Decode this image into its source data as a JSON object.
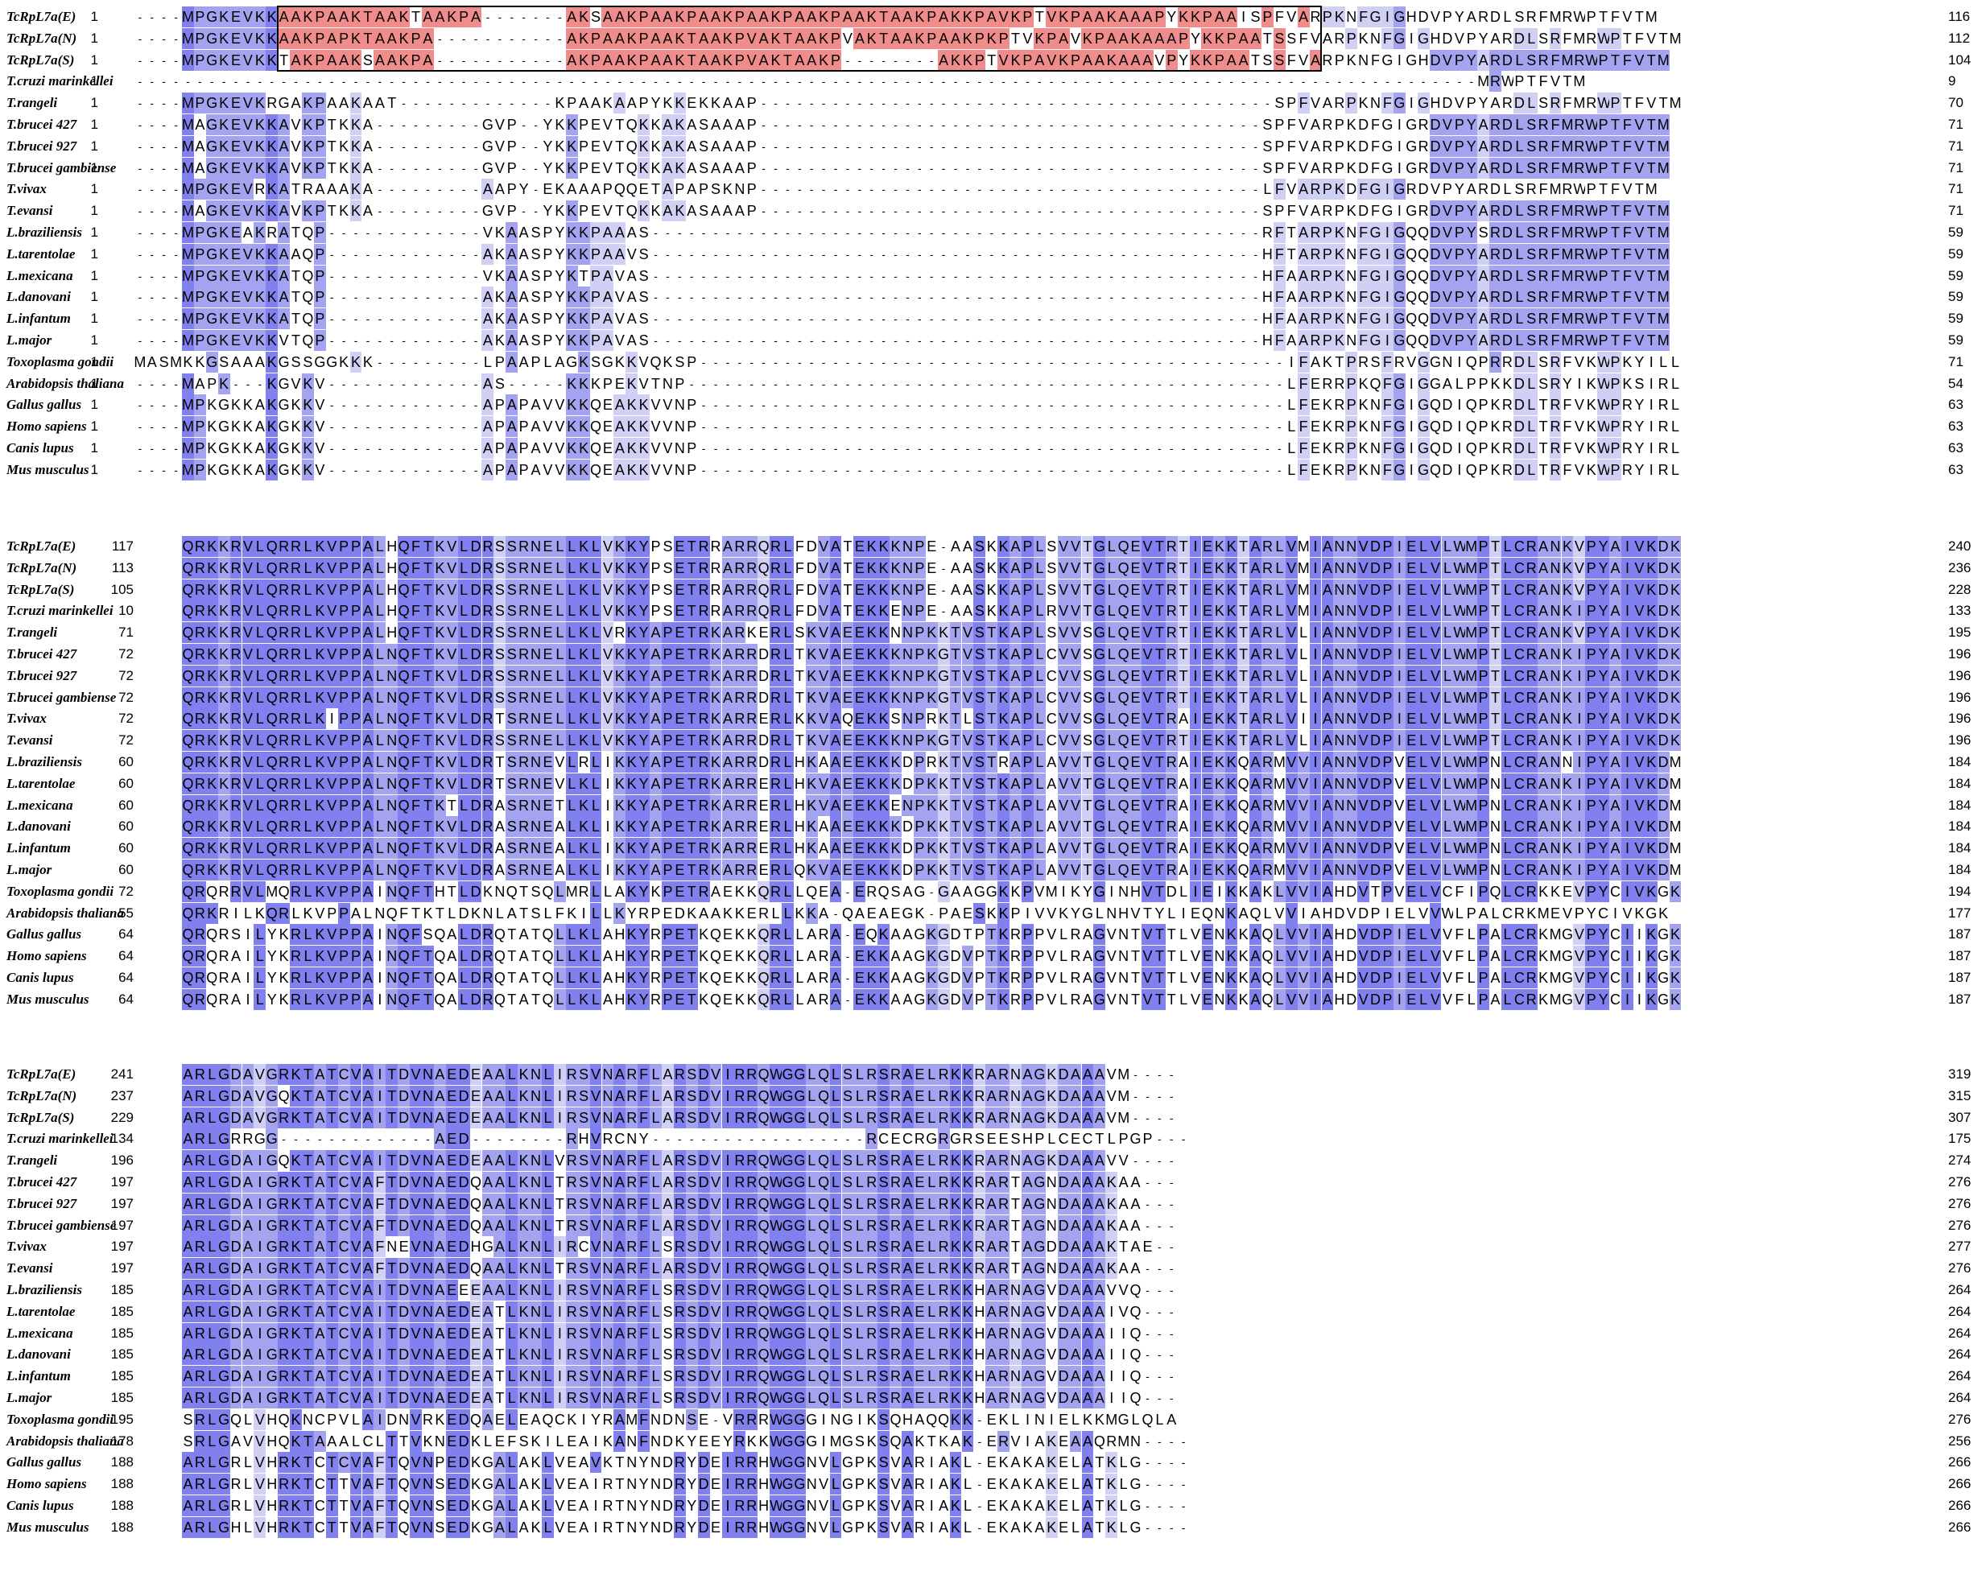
{
  "colors": {
    "strong": "#8080ee",
    "medium": "#a3a3ef",
    "light": "#d0d0f4",
    "extension": "#f08c8c",
    "none": "#ffffff"
  },
  "alignment": {
    "blocks": [
      {
        "rows": [
          {
            "species": "TcRpL7a(E)",
            "start": "1",
            "end": "116",
            "seq": "----MPGKEVKKAAKPAAKTAAKTAAKPA-------AKSAAKPAAKPAAKPAAKPAAKPAAKTAAKPAKKPAVKPTVKPAAKAAAPYKKPAAISPFVARPKNFGIGHDVPYARDLSRFMRWPTFVTM"
          },
          {
            "species": "TcRpL7a(N)",
            "start": "1",
            "end": "112",
            "seq": "----MPGKEVKKAAKPAPKTAAKPA-----------AKPAAKPAAKTAAKPVAKTAAKPVAKTAAKPAAKPKPTVKPAVKPAAKAAAPYKKPAATSSFVARPKNFGIGHDVPYARDLSRFMRWPTFVTM"
          },
          {
            "species": "TcRpL7a(S)",
            "start": "1",
            "end": "104",
            "seq": "----MPGKEVKKTAKPAAKSAAKPA-----------AKPAAKPAAKTAAKPVAKTAAKP--------AKKPTVKPAVKPAAKAAAVPYKKPAATSSFVARPKNFGIGHDVPYARDLSRFMRWPTFVTM"
          },
          {
            "species": "T.cruzi marinkellei",
            "start": "1",
            "end": "9",
            "seq": "----------------------------------------------------------------------------------------------------------------MRWPTFVTM"
          },
          {
            "species": "T.rangeli",
            "start": "1",
            "end": "70",
            "seq": "----MPGKEVKRGAKPAAKAAT-------------KPAAKAAPYKKEKKAAP-------------------------------------------SPFVARPKNFGIGHDVPYARDLSRFMRWPTFVTM"
          },
          {
            "species": "T.brucei 427",
            "start": "1",
            "end": "71",
            "seq": "----MAGKEVKKAVKPTKKA---------GVP--YKKPEVTQKKAKASAAAP------------------------------------------SPFVARPKDFGIGRDVPYARDLSRFMRWPTFVTM"
          },
          {
            "species": "T.brucei 927",
            "start": "1",
            "end": "71",
            "seq": "----MAGKEVKKAVKPTKKA---------GVP--YKKPEVTQKKAKASAAAP------------------------------------------SPFVARPKDFGIGRDVPYARDLSRFMRWPTFVTM"
          },
          {
            "species": "T.brucei gambiense",
            "start": "1",
            "end": "71",
            "seq": "----MAGKEVKKAVKPTKKA---------GVP--YKKPEVTQKKAKASAAAP------------------------------------------SPFVARPKDFGIGRDVPYARDLSRFMRWPTFVTM"
          },
          {
            "species": "T.vivax",
            "start": "1",
            "end": "71",
            "seq": "----MPGKEVRKATRAAAKA---------AAPY-EKAAAPQQETAPAPSKNP------------------------------------------LFVARPKDFGIGRDVPYARDLSRFMRWPTFVTM"
          },
          {
            "species": "T.evansi",
            "start": "1",
            "end": "71",
            "seq": "----MAGKEVKKAVKPTKKA---------GVP--YKKPEVTQKKAKASAAAP------------------------------------------SPFVARPKDFGIGRDVPYARDLSRFMRWPTFVTM"
          },
          {
            "species": "L.braziliensis",
            "start": "1",
            "end": "59",
            "seq": "----MPGKEAKRATQP-------------VKAASPYKKPAAAS---------------------------------------------------RFTARPKNFGIGQQDVPYSRDLSRFMRWPTFVTM"
          },
          {
            "species": "L.tarentolae",
            "start": "1",
            "end": "59",
            "seq": "----MPGKEVKKAAQP-------------AKAASPYKKPAAVS---------------------------------------------------HFTARPKNFGIGQQDVPYARDLSRFMRWPTFVTM"
          },
          {
            "species": "L.mexicana",
            "start": "1",
            "end": "59",
            "seq": "----MPGKEVKKATQP-------------VKAASPYKTPAVAS---------------------------------------------------HFAARPKNFGIGQQDVPYARDLSRFMRWPTFVTM"
          },
          {
            "species": "L.danovani",
            "start": "1",
            "end": "59",
            "seq": "----MPGKEVKKATQP-------------AKAASPYKKPAVAS---------------------------------------------------HFAARPKNFGIGQQDVPYARDLSRFMRWPTFVTM"
          },
          {
            "species": "L.infantum",
            "start": "1",
            "end": "59",
            "seq": "----MPGKEVKKATQP-------------AKAASPYKKPAVAS---------------------------------------------------HFAARPKNFGIGQQDVPYARDLSRFMRWPTFVTM"
          },
          {
            "species": "L.major",
            "start": "1",
            "end": "59",
            "seq": "----MPGKEVKKVTQP-------------AKAASPYKKPAVAS---------------------------------------------------HFAARPKNFGIGQQDVPYARDLSRFMRWPTFVTM"
          },
          {
            "species": "Toxoplasma gondii",
            "start": "1",
            "end": "71",
            "seq": "MASMKKGSAAAKGSSGGKKK---------LPAAPLAGKSGKKVQKSP-------------------------------------------------IFAKTPRSFRVGGNIQPRRDLSRFVKWPKYILL"
          },
          {
            "species": "Arabidopsis thaliana",
            "start": "1",
            "end": "54",
            "seq": "----MAPK---KGVKV-------------AS-----KKKPEKVTNP--------------------------------------------------LFERRPKQFGIGGALPPKKDLSRYIKWPKSIRL"
          },
          {
            "species": "Gallus gallus",
            "start": "1",
            "end": "63",
            "seq": "----MPKGKKAKGKKV-------------APAPAVVKKQEAKKVVNP-------------------------------------------------LFEKRPKNFGIGQDIQPKRDLTRFVKWPRYIRL"
          },
          {
            "species": "Homo sapiens",
            "start": "1",
            "end": "63",
            "seq": "----MPKGKKAKGKKV-------------APAPAVVKKQEAKKVVNP-------------------------------------------------LFEKRPKNFGIGQDIQPKRDLTRFVKWPRYIRL"
          },
          {
            "species": "Canis lupus",
            "start": "1",
            "end": "63",
            "seq": "----MPKGKKAKGKKV-------------APAPAVVKKQEAKKVVNP-------------------------------------------------LFEKRPKNFGIGQDIQPKRDLTRFVKWPRYIRL"
          },
          {
            "species": "Mus musculus",
            "start": "1",
            "end": "63",
            "seq": "----MPKGKKAKGKKV-------------APAPAVVKKQEAKKVVNP-------------------------------------------------LFEKRPKNFGIGQDIQPKRDLTRFVKWPRYIRL"
          }
        ]
      },
      {
        "rows": [
          {
            "species": "TcRpL7a(E)",
            "start": "117",
            "end": "240",
            "seq": "QRKKRVLQRRLKVPPALHQFTKVLDRSSRNELLKLVKKYPSETRRARRQRLFDVATEKKKNPE-AASKKAPLSVVTGLQEVTRTIEKKTARLVMIANNVDPIELVLWMPTLCRANKVPYAIVKDK"
          },
          {
            "species": "TcRpL7a(N)",
            "start": "113",
            "end": "236",
            "seq": "QRKKRVLQRRLKVPPALHQFTKVLDRSSRNELLKLVKKYPSETRRARRQRLFDVATEKKKNPE-AASKKAPLSVVTGLQEVTRTIEKKTARLVMIANNVDPIELVLWMPTLCRANKVPYAIVKDK"
          },
          {
            "species": "TcRpL7a(S)",
            "start": "105",
            "end": "228",
            "seq": "QRKKRVLQRRLKVPPALHQFTKVLDRSSRNELLKLVKKYPSETRRARRQRLFDVATEKKKNPE-AASKKAPLSVVTGLQEVTRTIEKKTARLVMIANNVDPIELVLWMPTLCRANKVPYAIVKDK"
          },
          {
            "species": "T.cruzi marinkellei",
            "start": "10",
            "end": "133",
            "seq": "QRKKRVLQRRLKVPPALHQFTKVLDRSSRNELLKLVKKYPSETRRARRQRLFDVATEKKENPE-AASKKAPLRVVTGLQEVTRTIEKKTARLVMIANNVDPIELVLWMPTLCRANKIPYAIVKDK"
          },
          {
            "species": "T.rangeli",
            "start": "71",
            "end": "195",
            "seq": "QRKKRVLQRRLKVPPALHQFTKVLDRSSRNELLKLVRKYAPETRKARKERLSKVAEEKKNNPKKTVSTKAPLSVVSGLQEVTRTIEKKTARLVLIANNVDPIELVLWMPTLCRANKVPYAIVKDK"
          },
          {
            "species": "T.brucei 427",
            "start": "72",
            "end": "196",
            "seq": "QRKKRVLQRRLKVPPALNQFTKVLDRSSRNELLKLVKKYAPETRKARRDRLTKVAEEKKKNPKGTVSTKAPLCVVSGLQEVTRTIEKKTARLVLIANNVDPIELVLWMPTLCRANKIPYAIVKDK"
          },
          {
            "species": "T.brucei 927",
            "start": "72",
            "end": "196",
            "seq": "QRKKRVLQRRLKVPPALNQFTKVLDRSSRNELLKLVKKYAPETRKARRDRLTKVAEEKKKNPKGTVSTKAPLCVVSGLQEVTRTIEKKTARLVLIANNVDPIELVLWMPTLCRANKIPYAIVKDK"
          },
          {
            "species": "T.brucei gambiense",
            "start": "72",
            "end": "196",
            "seq": "QRKKRVLQRRLKVPPALNQFTKVLDRSSRNELLKLVKKYAPETRKARRDRLTKVAEEKKKNPKGTVSTKAPLCVVSGLQEVTRTIEKKTARLVLIANNVDPIELVLWMPTLCRANKIPYAIVKDK"
          },
          {
            "species": "T.vivax",
            "start": "72",
            "end": "196",
            "seq": "QRKKRVLQRRLKIPPALNQFTKVLDRTSRNELLKLVKKYAPETRKARRERLKKVAQEKKSNPRKTLSTKAPLCVVSGLQEVTRAIEKKTARLVIIANNVDPIELVLWMPTLCRANKIPYAIVKDK"
          },
          {
            "species": "T.evansi",
            "start": "72",
            "end": "196",
            "seq": "QRKKRVLQRRLKVPPALNQFTKVLDRSSRNELLKLVKKYAPETRKARRDRLTKVAEEKKKNPKGTVSTKAPLCVVSGLQEVTRTIEKKTARLVLIANNVDPIELVLWMPTLCRANKIPYAIVKDK"
          },
          {
            "species": "L.braziliensis",
            "start": "60",
            "end": "184",
            "seq": "QRKKRVLQRRLKVPPALNQFTKVLDRTSRNEVLRLIKKYAPETRKARRDRLHKAAEEKKKDPRKTVSTRAPLAVVTGLQEVTRAIEKKQARMVVIANNVDPVELVLWMPNLCRANNIPYAIVKDM"
          },
          {
            "species": "L.tarentolae",
            "start": "60",
            "end": "184",
            "seq": "QRKKRVLQRRLKVPPALNQFTKVLDRTSRNEVLKLIKKYAPETRKARRERLHKVAEEKKKDPKKTVSTKAPLAVVTGLQEVTRAIEKKQARMVVIANNVDPVELVLWMPNLCRANKIPYAIVKDM"
          },
          {
            "species": "L.mexicana",
            "start": "60",
            "end": "184",
            "seq": "QRKKRVLQRRLKVPPALNQFTKTLDRASRNETLKLIKKYAPETRKARRERLHKVAEEKKENPKKTVSTKAPLAVVTGLQEVTRAIEKKQARMVVIANNVDPVELVLWMPNLCRANKIPYAIVKDM"
          },
          {
            "species": "L.danovani",
            "start": "60",
            "end": "184",
            "seq": "QRKKRVLQRRLKVPPALNQFTKVLDRASRNEALKLIKKYAPETRKARRERLHKAAEEKKKDPKKTVSTKAPLAVVTGLQEVTRAIEKKQARMVVIANNVDPVELVLWMPNLCRANKIPYAIVKDM"
          },
          {
            "species": "L.infantum",
            "start": "60",
            "end": "184",
            "seq": "QRKKRVLQRRLKVPPALNQFTKVLDRASRNEALKLIKKYAPETRKARRERLHKAAEEKKKDPKKTVSTKAPLAVVTGLQEVTRAIEKKQARMVVIANNVDPVELVLWMPNLCRANKIPYAIVKDM"
          },
          {
            "species": "L.major",
            "start": "60",
            "end": "184",
            "seq": "QRKKRVLQRRLKVPPALNQFTKVLDRASRNEALKLIKKYAPETRKARRERLQKVAEEKKKDPKKTVSTKAPLAVVTGLQEVTRAIEKKQARMVVIANNVDPVELVLWMPNLCRANKIPYAIVKDM"
          },
          {
            "species": "Toxoplasma gondii",
            "start": "72",
            "end": "194",
            "seq": "QRQRRVLMQRLKVPPAINQFTHTLDKNQTSQLMRLLAKYKPETRAEKKQRLLQEA-ERQSAG-GAAGGKKPVMIKYGINHVTDLIEIKKAKLVVIAHDVTPVELVCFIPQLCRKKEVPYCIVKGK"
          },
          {
            "species": "Arabidopsis thaliana",
            "start": "55",
            "end": "177",
            "seq": "QRKRILKQRLKVPPALNQFTKTLDKNLATSLFKILLKYRPEDKAAKKERLLKKA-QAEAEGK-PAESKKPIVVKYGLNHVTYLIEQNKAQLVVIAHDVDPIELVVWLPALCRKMEVPYCIVKGK"
          },
          {
            "species": "Gallus gallus",
            "start": "64",
            "end": "187",
            "seq": "QRQRSILYKRLKVPPAINQFSQALDRQTATQLLKLAHKYRPETKQEKKQRLLARA-EQKAAGKGDTPTKRPPVLRAGVNTVTTLVENKKAQLVVIAHDVDPIELVVFLPALCRKMGVPYCIIKGK"
          },
          {
            "species": "Homo sapiens",
            "start": "64",
            "end": "187",
            "seq": "QRQRAILYKRLKVPPAINQFTQALDRQTATQLLKLAHKYRPETKQEKKQRLLARA-EKKAAGKGDVPTKRPPVLRAGVNTVTTLVENKKAQLVVIAHDVDPIELVVFLPALCRKMGVPYCIIKGK"
          },
          {
            "species": "Canis lupus",
            "start": "64",
            "end": "187",
            "seq": "QRQRAILYKRLKVPPAINQFTQALDRQTATQLLKLAHKYRPETKQEKKQRLLARA-EKKAAGKGDVPTKRPPVLRAGVNTVTTLVENKKAQLVVIAHDVDPIELVVFLPALCRKMGVPYCIIKGK"
          },
          {
            "species": "Mus musculus",
            "start": "64",
            "end": "187",
            "seq": "QRQRAILYKRLKVPPAINQFTQALDRQTATQLLKLAHKYRPETKQEKKQRLLARA-EKKAAGKGDVPTKRPPVLRAGVNTVTTLVENKKAQLVVIAHDVDPIELVVFLPALCRKMGVPYCIIKGK"
          }
        ]
      },
      {
        "rows": [
          {
            "species": "TcRpL7a(E)",
            "start": "241",
            "end": "319",
            "seq": "ARLGDAVGRKTATCVAITDVNAEDEAALKNLIRSVNARFLARSDVIRRQWGGLQLSLRSRAELRKKRARNAGKDAAAVM----"
          },
          {
            "species": "TcRpL7a(N)",
            "start": "237",
            "end": "315",
            "seq": "ARLGDAVGQKTATCVAITDVNAEDEAALKNLIRSVNARFLARSDVIRRQWGGLQLSLRSRAELRKKRARNAGKDAAAVM----"
          },
          {
            "species": "TcRpL7a(S)",
            "start": "229",
            "end": "307",
            "seq": "ARLGDAVGRKTATCVAITDVNAEDEAALKNLIRSVNARFLARSDVIRRQWGGLQLSLRSRAELRKKRARNAGKDAAAVM----"
          },
          {
            "species": "T.cruzi marinkellei",
            "start": "134",
            "end": "175",
            "seq": "ARLGRRGG-------------AED--------RHVRCNY------------------RCECRGRGRSEESHPLCECTLPGP---"
          },
          {
            "species": "T.rangeli",
            "start": "196",
            "end": "274",
            "seq": "ARLGDAIGQKTATCVAITDVNAEDEAALKNLVRSVNARFLARSDVIRRQWGGLQLSLRSRAELRKKRARNAGKDAAAVV----"
          },
          {
            "species": "T.brucei 427",
            "start": "197",
            "end": "276",
            "seq": "ARLGDAIGRKTATCVAFTDVNAEDQAALKNLTRSVNARFLARSDVIRRQWGGLQLSLRSRAELRKKRARTAGNDAAAKAA---"
          },
          {
            "species": "T.brucei 927",
            "start": "197",
            "end": "276",
            "seq": "ARLGDAIGRKTATCVAFTDVNAEDQAALKNLTRSVNARFLARSDVIRRQWGGLQLSLRSRAELRKKRARTAGNDAAAKAA---"
          },
          {
            "species": "T.brucei gambiense",
            "start": "197",
            "end": "276",
            "seq": "ARLGDAIGRKTATCVAFTDVNAEDQAALKNLTRSVNARFLARSDVIRRQWGGLQLSLRSRAELRKKRARTAGNDAAAKAA---"
          },
          {
            "species": "T.vivax",
            "start": "197",
            "end": "277",
            "seq": "ARLGDAIGRKTATCVAFNEVNAEDHGALKNLIRCVNARFLSRSDVIRRQWGGLQLSLRSRAELRKKRARTAGDDAAAKTAE--"
          },
          {
            "species": "T.evansi",
            "start": "197",
            "end": "276",
            "seq": "ARLGDAIGRKTATCVAFTDVNAEDQAALKNLTRSVNARFLARSDVIRRQWGGLQLSLRSRAELRKKRARTAGNDAAAKAA---"
          },
          {
            "species": "L.braziliensis",
            "start": "185",
            "end": "264",
            "seq": "ARLGDAIGRKTATCVAITDVNAEEEAALKNLIRSVNARFLSRSDVIRRQWGGLQLSLRSRAELRKKHARNAGVDAAAVVQ---"
          },
          {
            "species": "L.tarentolae",
            "start": "185",
            "end": "264",
            "seq": "ARLGDAIGRKTATCVAITDVNAEDEATLKNLIRSVNARFLSRSDVIRRQWGGLQLSLRSRAELRKKHARNAGVDAAAIVQ---"
          },
          {
            "species": "L.mexicana",
            "start": "185",
            "end": "264",
            "seq": "ARLGDAIGRKTATCVAITDVNAEDEATLKNLIRSVNARFLSRSDVIRRQWGGLQLSLRSRAELRKKHARNAGVDAAAIIQ---"
          },
          {
            "species": "L.danovani",
            "start": "185",
            "end": "264",
            "seq": "ARLGDAIGRKTATCVAITDVNAEDEATLKNLIRSVNARFLSRSDVIRRQWGGLQLSLRSRAELRKKHARNAGVDAAAIIQ---"
          },
          {
            "species": "L.infantum",
            "start": "185",
            "end": "264",
            "seq": "ARLGDAIGRKTATCVAITDVNAEDEATLKNLIRSVNARFLSRSDVIRRQWGGLQLSLRSRAELRKKHARNAGVDAAAIIQ---"
          },
          {
            "species": "L.major",
            "start": "185",
            "end": "264",
            "seq": "ARLGDAIGRKTATCVAITDVNAEDEATLKNLIRSVNARFLSRSDVIRRQWGGLQLSLRSRAELRKKHARNAGVDAAAIIQ---"
          },
          {
            "species": "Toxoplasma gondii",
            "start": "195",
            "end": "276",
            "seq": "SRLGQLVHQKNCPVLAIDNVRKEDQAELEAQCKIYRAMFNDNSE-VRRRWGGGINGIKSQHAQQKK-EKLINIELKKMGLQLA"
          },
          {
            "species": "Arabidopsis thaliana",
            "start": "178",
            "end": "256",
            "seq": "SRLGAVVHQKTAAALCLTTVKNEDKLEFSKILEAIKANFNDKYEEYRKKWGGGIMGSKSQAKTKAK-ERVIAKEAAQRMN----"
          },
          {
            "species": "Gallus gallus",
            "start": "188",
            "end": "266",
            "seq": "ARLGRLVHRKTCTCVAFTQVNPEDKGALAKLVEAVKTNYNDRYDEIRRHWGGNVLGPKSVARIAKL-EKAKAKELATKLG----"
          },
          {
            "species": "Homo sapiens",
            "start": "188",
            "end": "266",
            "seq": "ARLGRLVHRKTCTTVAFTQVNSEDKGALAKLVEAIRTNYNDRYDEIRRHWGGNVLGPKSVARIAKL-EKAKAKELATKLG----"
          },
          {
            "species": "Canis lupus",
            "start": "188",
            "end": "266",
            "seq": "ARLGRLVHRKTCTTVAFTQVNSEDKGALAKLVEAIRTNYNDRYDEIRRHWGGNVLGPKSVARIAKL-EKAKAKELATKLG----"
          },
          {
            "species": "Mus musculus",
            "start": "188",
            "end": "266",
            "seq": "ARLGHLVHRKTCTTVAFTQVNSEDKGALAKLVEAIRTNYNDRYDEIRRHWGGNVLGPKSVARIAKL-EKAKAKELATKLG----"
          }
        ]
      }
    ]
  }
}
